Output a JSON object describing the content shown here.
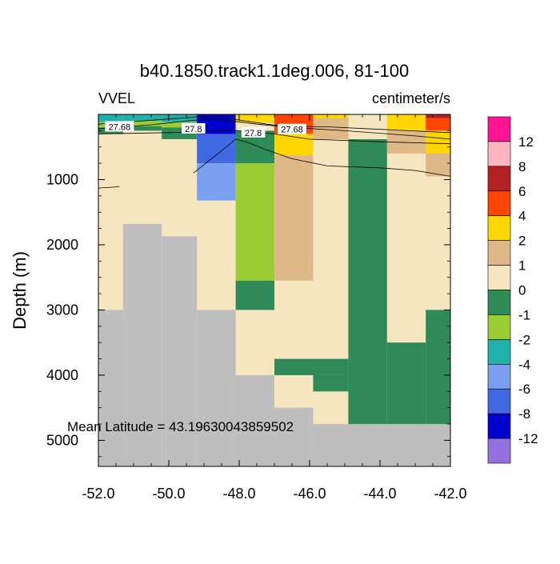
{
  "chart_data": {
    "type": "heatmap",
    "title": "b40.1850.track1.1deg.006, 81-100",
    "left_label": "VVEL",
    "right_label": "centimeter/s",
    "ylabel": "Depth (m)",
    "xlabel": "",
    "annotation": "Mean Latitude = 43.19630043859502",
    "xlim": [
      -52.0,
      -42.0
    ],
    "ylim": [
      5400,
      0
    ],
    "x_ticks": [
      -52.0,
      -50.0,
      -48.0,
      -46.0,
      -44.0,
      -42.0
    ],
    "x_tick_labels": [
      "-52.0",
      "-50.0",
      "-48.0",
      "-46.0",
      "-44.0",
      "-42.0"
    ],
    "y_ticks": [
      1000,
      2000,
      3000,
      4000,
      5000
    ],
    "y_tick_labels": [
      "1000",
      "2000",
      "3000",
      "4000",
      "5000"
    ],
    "colorbar": {
      "colors": [
        "#FF1493",
        "#FFB6C1",
        "#B22222",
        "#FF4500",
        "#FFD700",
        "#DEB887",
        "#F5E6C0",
        "#2E8B57",
        "#9ACD32",
        "#20B2AA",
        "#7B9FF0",
        "#4169E1",
        "#0000CD",
        "#9370DB"
      ],
      "labels": [
        "12",
        "8",
        "6",
        "4",
        "2",
        "1",
        "0",
        "-1",
        "-2",
        "-4",
        "-6",
        "-8",
        "-12"
      ]
    },
    "land_color": "#BEBEBE",
    "cells": [
      {
        "x0": -52.0,
        "x1": -42.0,
        "y0": 0,
        "y1": 5400,
        "color": "#F5E6C0"
      },
      {
        "x0": -52.0,
        "x1": -51.3,
        "y0": 3000,
        "y1": 5400,
        "color": "#BEBEBE"
      },
      {
        "x0": -51.3,
        "x1": -50.2,
        "y0": 1680,
        "y1": 5400,
        "color": "#BEBEBE"
      },
      {
        "x0": -50.2,
        "x1": -49.2,
        "y0": 1870,
        "y1": 5400,
        "color": "#BEBEBE"
      },
      {
        "x0": -49.2,
        "x1": -48.1,
        "y0": 3000,
        "y1": 5400,
        "color": "#BEBEBE"
      },
      {
        "x0": -48.1,
        "x1": -47.0,
        "y0": 4000,
        "y1": 5400,
        "color": "#BEBEBE"
      },
      {
        "x0": -47.0,
        "x1": -45.9,
        "y0": 4500,
        "y1": 5400,
        "color": "#BEBEBE"
      },
      {
        "x0": -45.9,
        "x1": -42.0,
        "y0": 4750,
        "y1": 5400,
        "color": "#BEBEBE"
      },
      {
        "x0": -52.0,
        "x1": -51.3,
        "y0": 0,
        "y1": 120,
        "color": "#20B2AA"
      },
      {
        "x0": -52.0,
        "x1": -51.3,
        "y0": 120,
        "y1": 200,
        "color": "#9ACD32"
      },
      {
        "x0": -52.0,
        "x1": -51.3,
        "y0": 200,
        "y1": 300,
        "color": "#2E8B57"
      },
      {
        "x0": -51.3,
        "x1": -50.2,
        "y0": 0,
        "y1": 100,
        "color": "#20B2AA"
      },
      {
        "x0": -51.3,
        "x1": -50.2,
        "y0": 100,
        "y1": 180,
        "color": "#9ACD32"
      },
      {
        "x0": -51.3,
        "x1": -50.2,
        "y0": 180,
        "y1": 250,
        "color": "#2E8B57"
      },
      {
        "x0": -50.2,
        "x1": -49.2,
        "y0": 0,
        "y1": 120,
        "color": "#20B2AA"
      },
      {
        "x0": -50.2,
        "x1": -49.2,
        "y0": 120,
        "y1": 200,
        "color": "#9ACD32"
      },
      {
        "x0": -50.2,
        "x1": -49.2,
        "y0": 200,
        "y1": 380,
        "color": "#2E8B57"
      },
      {
        "x0": -49.2,
        "x1": -48.1,
        "y0": 0,
        "y1": 300,
        "color": "#0000CD"
      },
      {
        "x0": -49.2,
        "x1": -48.1,
        "y0": 300,
        "y1": 750,
        "color": "#4169E1"
      },
      {
        "x0": -49.2,
        "x1": -48.1,
        "y0": 750,
        "y1": 1320,
        "color": "#7B9FF0"
      },
      {
        "x0": -48.1,
        "x1": -47.0,
        "y0": 0,
        "y1": 130,
        "color": "#FFD700"
      },
      {
        "x0": -48.1,
        "x1": -47.0,
        "y0": 130,
        "y1": 250,
        "color": "#F5E6C0"
      },
      {
        "x0": -48.1,
        "x1": -47.0,
        "y0": 250,
        "y1": 750,
        "color": "#2E8B57"
      },
      {
        "x0": -48.1,
        "x1": -47.0,
        "y0": 750,
        "y1": 2550,
        "color": "#9ACD32"
      },
      {
        "x0": -48.1,
        "x1": -47.0,
        "y0": 2550,
        "y1": 3000,
        "color": "#2E8B57"
      },
      {
        "x0": -47.0,
        "x1": -45.9,
        "y0": 0,
        "y1": 300,
        "color": "#FF4500"
      },
      {
        "x0": -47.0,
        "x1": -45.9,
        "y0": 300,
        "y1": 630,
        "color": "#FFD700"
      },
      {
        "x0": -47.0,
        "x1": -45.9,
        "y0": 630,
        "y1": 2550,
        "color": "#DEB887"
      },
      {
        "x0": -45.9,
        "x1": -44.9,
        "y0": 0,
        "y1": 60,
        "color": "#FFD700"
      },
      {
        "x0": -45.9,
        "x1": -44.9,
        "y0": 60,
        "y1": 380,
        "color": "#DEB887"
      },
      {
        "x0": -44.9,
        "x1": -43.8,
        "y0": 380,
        "y1": 4750,
        "color": "#2E8B57"
      },
      {
        "x0": -43.8,
        "x1": -42.7,
        "y0": 0,
        "y1": 250,
        "color": "#FFD700"
      },
      {
        "x0": -43.8,
        "x1": -42.7,
        "y0": 250,
        "y1": 600,
        "color": "#DEB887"
      },
      {
        "x0": -42.7,
        "x1": -42.0,
        "y0": 0,
        "y1": 60,
        "color": "#B22222"
      },
      {
        "x0": -42.7,
        "x1": -42.0,
        "y0": 60,
        "y1": 250,
        "color": "#FF4500"
      },
      {
        "x0": -42.7,
        "x1": -42.0,
        "y0": 250,
        "y1": 600,
        "color": "#FFD700"
      },
      {
        "x0": -42.7,
        "x1": -42.0,
        "y0": 600,
        "y1": 950,
        "color": "#DEB887"
      },
      {
        "x0": -42.7,
        "x1": -42.0,
        "y0": 3000,
        "y1": 4750,
        "color": "#2E8B57"
      },
      {
        "x0": -47.0,
        "x1": -44.9,
        "y0": 3750,
        "y1": 4000,
        "color": "#2E8B57"
      },
      {
        "x0": -45.9,
        "x1": -44.9,
        "y0": 4000,
        "y1": 4250,
        "color": "#2E8B57"
      },
      {
        "x0": -43.8,
        "x1": -42.7,
        "y0": 3500,
        "y1": 4750,
        "color": "#2E8B57"
      }
    ],
    "contours": [
      {
        "points": [
          [
            -52.0,
            300
          ],
          [
            -50.0,
            280
          ],
          [
            -49.3,
            270
          ],
          [
            -48.2,
            240
          ],
          [
            -47.0,
            300
          ],
          [
            -46.0,
            380
          ],
          [
            -44.0,
            420
          ],
          [
            -42.0,
            450
          ]
        ]
      },
      {
        "points": [
          [
            -52.0,
            220
          ],
          [
            -50.5,
            160
          ],
          [
            -49.3,
            90
          ],
          [
            -48.5,
            80
          ],
          [
            -47.5,
            150
          ],
          [
            -46.5,
            200
          ],
          [
            -45.0,
            250
          ],
          [
            -43.0,
            330
          ],
          [
            -42.0,
            380
          ]
        ]
      },
      {
        "points": [
          [
            -52.0,
            150
          ],
          [
            -51.0,
            110
          ],
          [
            -50.0,
            70
          ],
          [
            -49.2,
            40
          ],
          [
            -48.3,
            60
          ],
          [
            -47.6,
            120
          ],
          [
            -46.8,
            180
          ],
          [
            -45.5,
            190
          ],
          [
            -44.0,
            230
          ],
          [
            -42.0,
            280
          ]
        ]
      },
      {
        "points": [
          [
            -49.3,
            900
          ],
          [
            -48.6,
            600
          ],
          [
            -48.1,
            380
          ],
          [
            -47.8,
            420
          ],
          [
            -47.2,
            550
          ],
          [
            -46.5,
            680
          ],
          [
            -45.5,
            790
          ],
          [
            -44.0,
            820
          ],
          [
            -43.0,
            860
          ],
          [
            -42.0,
            950
          ]
        ]
      },
      {
        "points": [
          [
            -52.0,
            1130
          ],
          [
            -51.4,
            1110
          ]
        ]
      }
    ],
    "contour_labels": [
      {
        "text": "27.68",
        "x": -51.4,
        "y": 190
      },
      {
        "text": "27.8",
        "x": -49.3,
        "y": 220
      },
      {
        "text": "27.8",
        "x": -47.6,
        "y": 280
      },
      {
        "text": "27.68",
        "x": -46.5,
        "y": 230
      }
    ]
  }
}
